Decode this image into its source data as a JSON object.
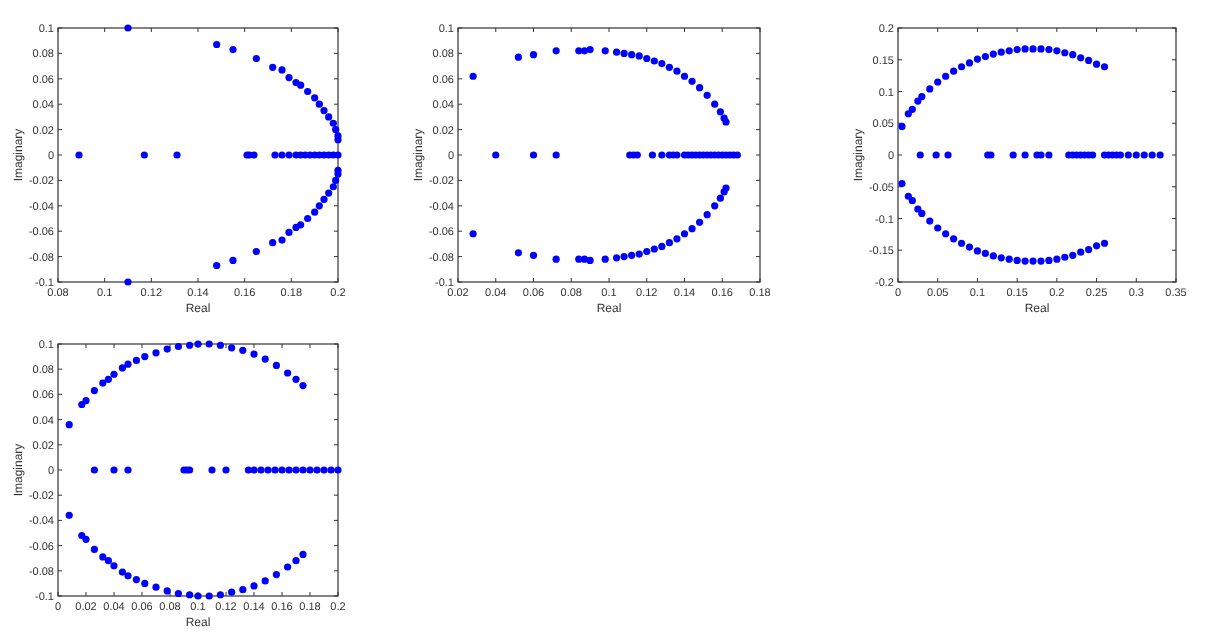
{
  "chart_data": [
    {
      "type": "scatter",
      "xlabel": "Real",
      "ylabel": "Imaginary",
      "xlim": [
        0.08,
        0.2
      ],
      "ylim": [
        -0.1,
        0.1
      ],
      "xticks": [
        0.08,
        0.1,
        0.12,
        0.14,
        0.16,
        0.18,
        0.2
      ],
      "yticks": [
        -0.1,
        -0.08,
        -0.06,
        -0.04,
        -0.02,
        0,
        0.02,
        0.04,
        0.06,
        0.08,
        0.1
      ],
      "marker": "circle",
      "series": [
        {
          "color": "#0000ff",
          "x": [
            0.11,
            0.148,
            0.155,
            0.165,
            0.172,
            0.176,
            0.179,
            0.182,
            0.184,
            0.187,
            0.19,
            0.192,
            0.194,
            0.196,
            0.198,
            0.199,
            0.2,
            0.2,
            0.11,
            0.148,
            0.155,
            0.165,
            0.172,
            0.176,
            0.179,
            0.182,
            0.184,
            0.187,
            0.19,
            0.192,
            0.194,
            0.196,
            0.198,
            0.199,
            0.2,
            0.2,
            0.089,
            0.117,
            0.131,
            0.161,
            0.162,
            0.164,
            0.173,
            0.176,
            0.179,
            0.182,
            0.184,
            0.186,
            0.188,
            0.19,
            0.192,
            0.194,
            0.196,
            0.198,
            0.2
          ],
          "values": [
            0.1,
            0.087,
            0.083,
            0.076,
            0.069,
            0.067,
            0.061,
            0.057,
            0.055,
            0.05,
            0.045,
            0.04,
            0.035,
            0.03,
            0.025,
            0.02,
            0.015,
            0.012,
            -0.1,
            -0.087,
            -0.083,
            -0.076,
            -0.069,
            -0.067,
            -0.061,
            -0.057,
            -0.055,
            -0.05,
            -0.045,
            -0.04,
            -0.035,
            -0.03,
            -0.025,
            -0.02,
            -0.015,
            -0.012,
            0,
            0,
            0,
            0,
            0,
            0,
            0,
            0,
            0,
            0,
            0,
            0,
            0,
            0,
            0,
            0,
            0,
            0,
            0
          ]
        }
      ]
    },
    {
      "type": "scatter",
      "xlabel": "Real",
      "ylabel": "Imaginary",
      "xlim": [
        0.02,
        0.18
      ],
      "ylim": [
        -0.1,
        0.1
      ],
      "xticks": [
        0.02,
        0.04,
        0.06,
        0.08,
        0.1,
        0.12,
        0.14,
        0.16,
        0.18
      ],
      "yticks": [
        -0.1,
        -0.08,
        -0.06,
        -0.04,
        -0.02,
        0,
        0.02,
        0.04,
        0.06,
        0.08,
        0.1
      ],
      "marker": "circle",
      "series": [
        {
          "color": "#0000ff",
          "x": [
            0.028,
            0.052,
            0.06,
            0.072,
            0.084,
            0.087,
            0.09,
            0.098,
            0.104,
            0.108,
            0.112,
            0.116,
            0.12,
            0.124,
            0.128,
            0.132,
            0.136,
            0.14,
            0.144,
            0.148,
            0.152,
            0.156,
            0.159,
            0.161,
            0.162,
            0.028,
            0.052,
            0.06,
            0.072,
            0.084,
            0.087,
            0.09,
            0.098,
            0.104,
            0.108,
            0.112,
            0.116,
            0.12,
            0.124,
            0.128,
            0.132,
            0.136,
            0.14,
            0.144,
            0.148,
            0.152,
            0.156,
            0.159,
            0.161,
            0.162,
            0.04,
            0.06,
            0.072,
            0.111,
            0.113,
            0.115,
            0.123,
            0.128,
            0.132,
            0.134,
            0.136,
            0.14,
            0.142,
            0.144,
            0.146,
            0.148,
            0.15,
            0.152,
            0.154,
            0.156,
            0.158,
            0.16,
            0.162,
            0.164,
            0.166,
            0.168
          ],
          "values": [
            0.062,
            0.077,
            0.079,
            0.082,
            0.082,
            0.082,
            0.083,
            0.082,
            0.081,
            0.08,
            0.079,
            0.078,
            0.076,
            0.074,
            0.072,
            0.069,
            0.066,
            0.062,
            0.058,
            0.053,
            0.047,
            0.04,
            0.034,
            0.029,
            0.026,
            -0.062,
            -0.077,
            -0.079,
            -0.082,
            -0.082,
            -0.082,
            -0.083,
            -0.082,
            -0.081,
            -0.08,
            -0.079,
            -0.078,
            -0.076,
            -0.074,
            -0.072,
            -0.069,
            -0.066,
            -0.062,
            -0.058,
            -0.053,
            -0.047,
            -0.04,
            -0.034,
            -0.029,
            -0.026,
            0,
            0,
            0,
            0,
            0,
            0,
            0,
            0,
            0,
            0,
            0,
            0,
            0,
            0,
            0,
            0,
            0,
            0,
            0,
            0,
            0,
            0,
            0,
            0,
            0,
            0
          ]
        }
      ]
    },
    {
      "type": "scatter",
      "xlabel": "Real",
      "ylabel": "Imaginary",
      "xlim": [
        0,
        0.35
      ],
      "ylim": [
        -0.2,
        0.2
      ],
      "xticks": [
        0,
        0.05,
        0.1,
        0.15,
        0.2,
        0.25,
        0.3,
        0.35
      ],
      "yticks": [
        -0.2,
        -0.15,
        -0.1,
        -0.05,
        0,
        0.05,
        0.1,
        0.15,
        0.2
      ],
      "marker": "circle",
      "series": [
        {
          "color": "#0000ff",
          "x": [
            0.005,
            0.013,
            0.018,
            0.025,
            0.03,
            0.04,
            0.05,
            0.06,
            0.07,
            0.08,
            0.09,
            0.1,
            0.11,
            0.12,
            0.13,
            0.14,
            0.15,
            0.16,
            0.17,
            0.18,
            0.19,
            0.2,
            0.21,
            0.22,
            0.23,
            0.24,
            0.25,
            0.26,
            0.005,
            0.013,
            0.018,
            0.025,
            0.03,
            0.04,
            0.05,
            0.06,
            0.07,
            0.08,
            0.09,
            0.1,
            0.11,
            0.12,
            0.13,
            0.14,
            0.15,
            0.16,
            0.17,
            0.18,
            0.19,
            0.2,
            0.21,
            0.22,
            0.23,
            0.24,
            0.25,
            0.26,
            0.028,
            0.048,
            0.063,
            0.113,
            0.117,
            0.145,
            0.16,
            0.175,
            0.18,
            0.19,
            0.215,
            0.22,
            0.225,
            0.23,
            0.235,
            0.24,
            0.245,
            0.26,
            0.265,
            0.27,
            0.275,
            0.28,
            0.29,
            0.3,
            0.31,
            0.32,
            0.33
          ],
          "values": [
            0.045,
            0.065,
            0.072,
            0.085,
            0.092,
            0.104,
            0.115,
            0.124,
            0.132,
            0.139,
            0.145,
            0.151,
            0.155,
            0.159,
            0.162,
            0.164,
            0.166,
            0.167,
            0.167,
            0.167,
            0.166,
            0.164,
            0.161,
            0.158,
            0.153,
            0.149,
            0.143,
            0.139,
            -0.045,
            -0.065,
            -0.072,
            -0.085,
            -0.092,
            -0.104,
            -0.115,
            -0.124,
            -0.132,
            -0.139,
            -0.145,
            -0.151,
            -0.155,
            -0.159,
            -0.162,
            -0.164,
            -0.166,
            -0.167,
            -0.167,
            -0.167,
            -0.166,
            -0.164,
            -0.161,
            -0.158,
            -0.153,
            -0.149,
            -0.143,
            -0.139,
            0,
            0,
            0,
            0,
            0,
            0,
            0,
            0,
            0,
            0,
            0,
            0,
            0,
            0,
            0,
            0,
            0,
            0,
            0,
            0,
            0,
            0,
            0,
            0,
            0,
            0,
            0
          ]
        }
      ]
    },
    {
      "type": "scatter",
      "xlabel": "Real",
      "ylabel": "Imaginary",
      "xlim": [
        0,
        0.2
      ],
      "ylim": [
        -0.1,
        0.1
      ],
      "xticks": [
        0,
        0.02,
        0.04,
        0.06,
        0.08,
        0.1,
        0.12,
        0.14,
        0.16,
        0.18,
        0.2
      ],
      "yticks": [
        -0.1,
        -0.08,
        -0.06,
        -0.04,
        -0.02,
        0,
        0.02,
        0.04,
        0.06,
        0.08,
        0.1
      ],
      "marker": "circle",
      "series": [
        {
          "color": "#0000ff",
          "x": [
            0.008,
            0.017,
            0.02,
            0.026,
            0.032,
            0.036,
            0.04,
            0.046,
            0.05,
            0.056,
            0.062,
            0.07,
            0.078,
            0.086,
            0.094,
            0.1,
            0.108,
            0.116,
            0.124,
            0.132,
            0.14,
            0.148,
            0.156,
            0.164,
            0.17,
            0.175,
            0.008,
            0.017,
            0.02,
            0.026,
            0.032,
            0.036,
            0.04,
            0.046,
            0.05,
            0.056,
            0.062,
            0.07,
            0.078,
            0.086,
            0.094,
            0.1,
            0.108,
            0.116,
            0.124,
            0.132,
            0.14,
            0.148,
            0.156,
            0.164,
            0.17,
            0.175,
            0.026,
            0.04,
            0.05,
            0.09,
            0.092,
            0.094,
            0.11,
            0.12,
            0.136,
            0.14,
            0.145,
            0.15,
            0.155,
            0.16,
            0.165,
            0.17,
            0.175,
            0.18,
            0.185,
            0.19,
            0.195,
            0.2
          ],
          "values": [
            0.036,
            0.052,
            0.055,
            0.063,
            0.069,
            0.072,
            0.076,
            0.081,
            0.084,
            0.087,
            0.09,
            0.093,
            0.096,
            0.098,
            0.099,
            0.1,
            0.1,
            0.099,
            0.097,
            0.095,
            0.092,
            0.088,
            0.083,
            0.077,
            0.072,
            0.067,
            -0.036,
            -0.052,
            -0.055,
            -0.063,
            -0.069,
            -0.072,
            -0.076,
            -0.081,
            -0.084,
            -0.087,
            -0.09,
            -0.093,
            -0.096,
            -0.098,
            -0.099,
            -0.1,
            -0.1,
            -0.099,
            -0.097,
            -0.095,
            -0.092,
            -0.088,
            -0.083,
            -0.077,
            -0.072,
            -0.067,
            0,
            0,
            0,
            0,
            0,
            0,
            0,
            0,
            0,
            0,
            0,
            0,
            0,
            0,
            0,
            0,
            0,
            0,
            0,
            0,
            0,
            0
          ]
        }
      ]
    }
  ]
}
